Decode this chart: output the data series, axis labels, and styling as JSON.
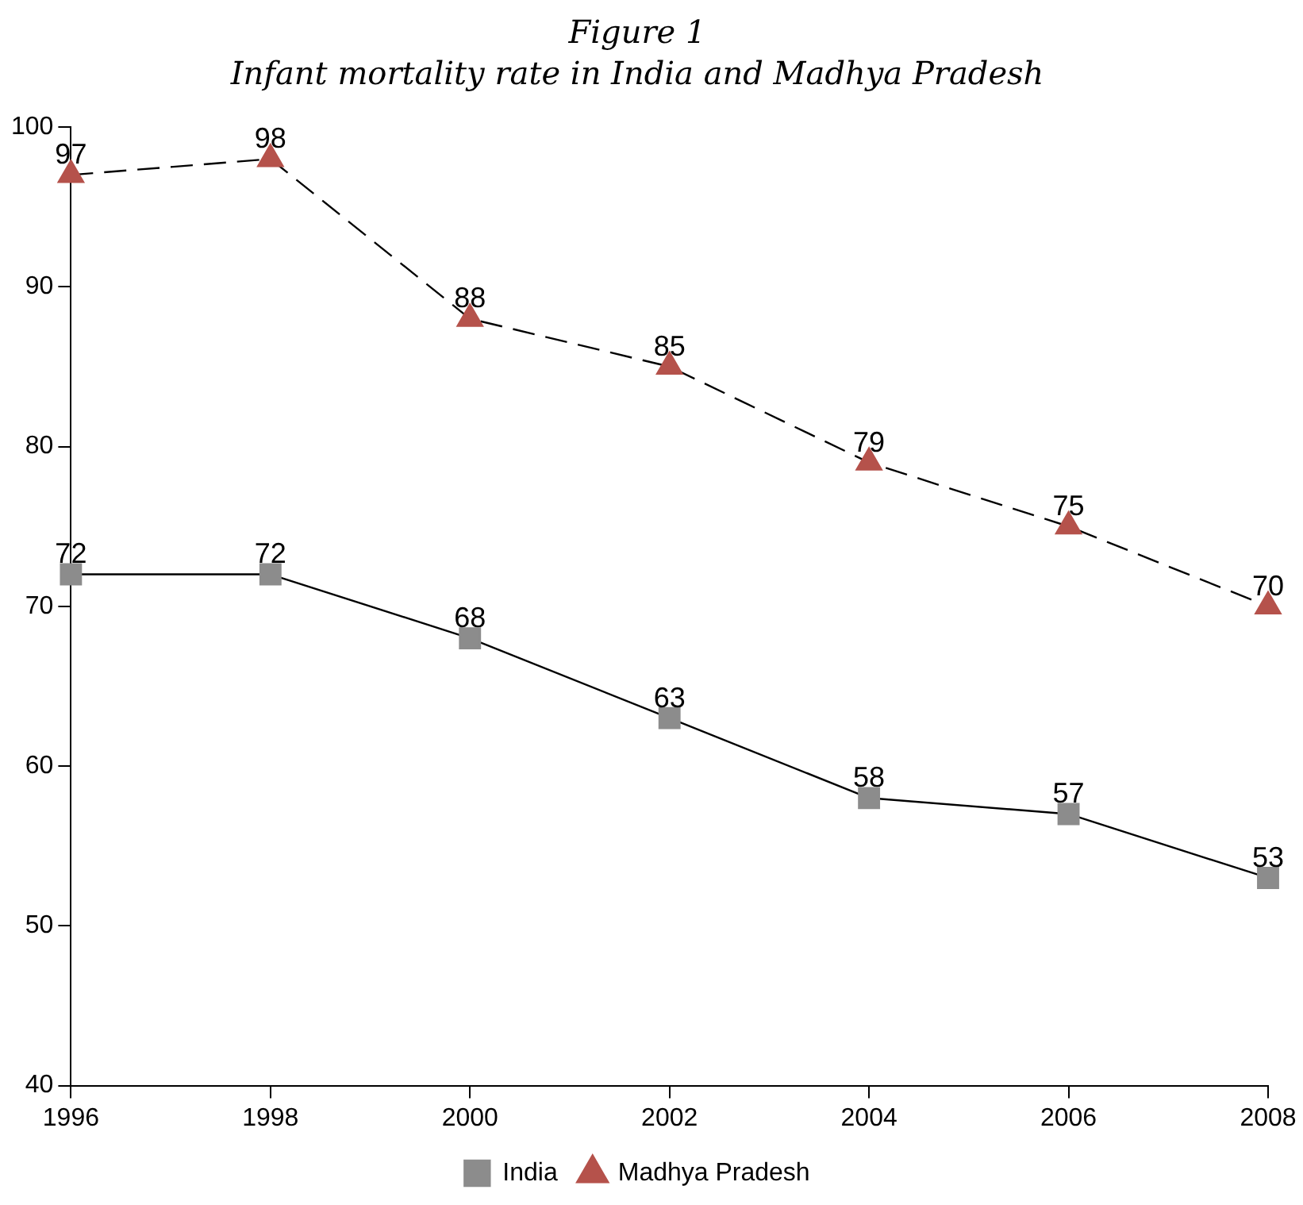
{
  "chart_data": {
    "type": "line",
    "title": "Figure 1",
    "subtitle": "Infant mortality rate in India and Madhya Pradesh",
    "x": [
      1996,
      1998,
      2000,
      2002,
      2004,
      2006,
      2008
    ],
    "series": [
      {
        "name": "India",
        "color": "#8c8c8c",
        "marker": "square",
        "line_style": "solid",
        "values": [
          72,
          72,
          68,
          63,
          58,
          57,
          53
        ]
      },
      {
        "name": "Madhya Pradesh",
        "color": "#b5524b",
        "marker": "triangle",
        "line_style": "dashed",
        "values": [
          97,
          98,
          88,
          85,
          79,
          75,
          70
        ]
      }
    ],
    "xlim": [
      1996,
      2008
    ],
    "xticks": [
      1996,
      1998,
      2000,
      2002,
      2004,
      2006,
      2008
    ],
    "ylim": [
      40,
      100
    ],
    "yticks": [
      40,
      50,
      60,
      70,
      80,
      90,
      100
    ],
    "grid": false,
    "legend": "bottom",
    "data_labels": true
  }
}
